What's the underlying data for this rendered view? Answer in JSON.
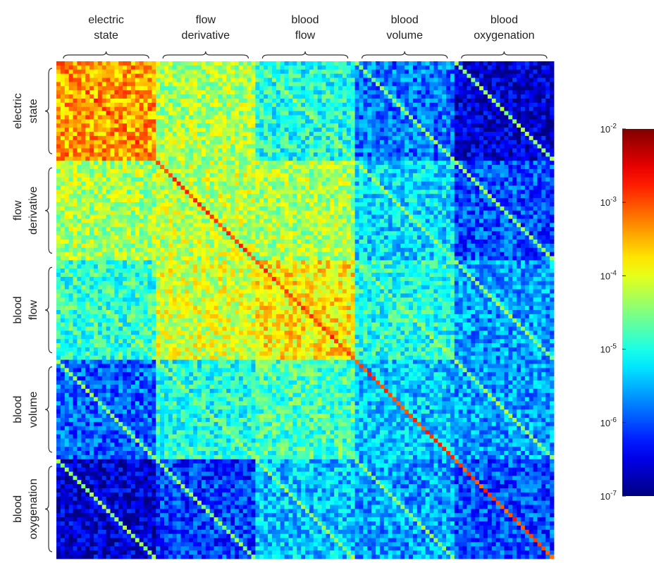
{
  "chart_data": {
    "type": "heatmap",
    "groups": [
      {
        "key": "electric-state",
        "lines": [
          "electric",
          "state"
        ]
      },
      {
        "key": "flow-derivative",
        "lines": [
          "flow",
          "derivative"
        ]
      },
      {
        "key": "blood-flow",
        "lines": [
          "blood",
          "flow"
        ]
      },
      {
        "key": "blood-volume",
        "lines": [
          "blood",
          "volume"
        ]
      },
      {
        "key": "blood-oxygenation",
        "lines": [
          "blood",
          "oxygenation"
        ]
      }
    ],
    "cells_per_group": 24,
    "block_log10_means": [
      [
        -3.4,
        -4.3,
        -5.0,
        -5.8,
        -6.6
      ],
      [
        -4.3,
        -4.2,
        -4.3,
        -5.3,
        -6.0
      ],
      [
        -4.9,
        -4.1,
        -3.8,
        -5.0,
        -5.6
      ],
      [
        -5.9,
        -5.0,
        -4.8,
        -5.4,
        -5.6
      ],
      [
        -6.6,
        -6.1,
        -5.4,
        -5.6,
        -6.0
      ]
    ],
    "diagonal_log10": -3.6,
    "colorbar": {
      "scale": "log",
      "range": [
        1e-07,
        0.01
      ],
      "ticks": [
        {
          "value": 0.01,
          "base": "10",
          "exp": "-2"
        },
        {
          "value": 0.001,
          "base": "10",
          "exp": "-3"
        },
        {
          "value": 0.0001,
          "base": "10",
          "exp": "-4"
        },
        {
          "value": 1e-05,
          "base": "10",
          "exp": "-5"
        },
        {
          "value": 1e-06,
          "base": "10",
          "exp": "-6"
        },
        {
          "value": 1e-07,
          "base": "10",
          "exp": "-7"
        }
      ],
      "colormap": "jet"
    }
  }
}
